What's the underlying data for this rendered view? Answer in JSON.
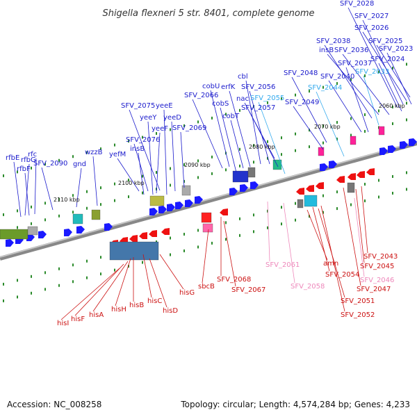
{
  "title": "Shigella flexneri 5 str. 8401, complete genome",
  "footer": {
    "accession": "Accession: NC_008258",
    "topology": "Topology: circular; Length: 4,574,284 bp; Genes: 4,233"
  },
  "colors": {
    "forward_strand": "#1a1aff",
    "reverse_strand": "#ee1111",
    "forward_light": "#66ccff",
    "reverse_light": "#ff99cc",
    "backbone": "#888888",
    "ticks": "#2a8a2a"
  },
  "kbp_ticks": [
    "2060 kbp",
    "2070 kbp",
    "2080 kbp",
    "2090 kbp",
    "2100 kbp",
    "2110 kbp"
  ],
  "top_labels": [
    {
      "text": "rfbG",
      "color": "#1a1acc"
    },
    {
      "text": "rfbE",
      "color": "#1a1acc"
    },
    {
      "text": "rfc",
      "color": "#1a1acc"
    },
    {
      "text": "rfbF",
      "color": "#1a1acc"
    },
    {
      "text": "SFV_2090",
      "color": "#1a1acc"
    },
    {
      "text": "gnd",
      "color": "#1a1acc"
    },
    {
      "text": "wzzB",
      "color": "#1a1acc"
    },
    {
      "text": "yefM",
      "color": "#1a1acc"
    },
    {
      "text": "insB",
      "color": "#1a1acc"
    },
    {
      "text": "SFV_2076",
      "color": "#1a1acc"
    },
    {
      "text": "yeeF",
      "color": "#1a1acc"
    },
    {
      "text": "yeeY",
      "color": "#1a1acc"
    },
    {
      "text": "SFV_2075",
      "color": "#1a1acc"
    },
    {
      "text": "yeeE",
      "color": "#1a1acc"
    },
    {
      "text": "yeeD",
      "color": "#1a1acc"
    },
    {
      "text": "SFV_2069",
      "color": "#1a1acc"
    },
    {
      "text": "SFV_2066",
      "color": "#1a1acc"
    },
    {
      "text": "cobU",
      "color": "#1a1acc"
    },
    {
      "text": "cobS",
      "color": "#1a1acc"
    },
    {
      "text": "cobT",
      "color": "#1a1acc"
    },
    {
      "text": "erfK",
      "color": "#1a1acc"
    },
    {
      "text": "cbl",
      "color": "#1a1acc"
    },
    {
      "text": "SFV_2056",
      "color": "#1a1acc"
    },
    {
      "text": "nac",
      "color": "#1a1acc"
    },
    {
      "text": "SFV_2055",
      "color": "#33aaee"
    },
    {
      "text": "SFV_2057",
      "color": "#1a1acc"
    },
    {
      "text": "SFV_2048",
      "color": "#1a1acc"
    },
    {
      "text": "SFV_2049",
      "color": "#1a1acc"
    },
    {
      "text": "SFV_2044",
      "color": "#33aaee"
    },
    {
      "text": "SFV_2040",
      "color": "#1a1acc"
    },
    {
      "text": "SFV_2037",
      "color": "#1a1acc"
    },
    {
      "text": "SFV_2033",
      "color": "#33aaee"
    },
    {
      "text": "SFV_2038",
      "color": "#1a1acc"
    },
    {
      "text": "insB",
      "color": "#1a1acc"
    },
    {
      "text": "SFV_2036",
      "color": "#1a1acc"
    },
    {
      "text": "SFV_2028",
      "color": "#1a1acc"
    },
    {
      "text": "SFV_2027",
      "color": "#1a1acc"
    },
    {
      "text": "SFV_2026",
      "color": "#1a1acc"
    },
    {
      "text": "SFV_2025",
      "color": "#1a1acc"
    },
    {
      "text": "SFV_2024",
      "color": "#1a1acc"
    },
    {
      "text": "SFV_2023",
      "color": "#1a1acc"
    }
  ],
  "bottom_labels": [
    {
      "text": "hisI",
      "color": "#cc1111"
    },
    {
      "text": "hisF",
      "color": "#cc1111"
    },
    {
      "text": "hisA",
      "color": "#cc1111"
    },
    {
      "text": "hisH",
      "color": "#cc1111"
    },
    {
      "text": "hisB",
      "color": "#cc1111"
    },
    {
      "text": "hisC",
      "color": "#cc1111"
    },
    {
      "text": "hisD",
      "color": "#cc1111"
    },
    {
      "text": "hisG",
      "color": "#cc1111"
    },
    {
      "text": "sbcB",
      "color": "#cc1111"
    },
    {
      "text": "SFV_2068",
      "color": "#cc1111"
    },
    {
      "text": "SFV_2067",
      "color": "#cc1111"
    },
    {
      "text": "SFV_2061",
      "color": "#ee88bb"
    },
    {
      "text": "SFV_2058",
      "color": "#ee88bb"
    },
    {
      "text": "amn",
      "color": "#cc1111"
    },
    {
      "text": "SFV_2054",
      "color": "#cc1111"
    },
    {
      "text": "SFV_2051",
      "color": "#cc1111"
    },
    {
      "text": "SFV_2052",
      "color": "#cc1111"
    },
    {
      "text": "SFV_2047",
      "color": "#cc1111"
    },
    {
      "text": "SFV_2046",
      "color": "#ee88bb"
    },
    {
      "text": "SFV_2045",
      "color": "#cc1111"
    },
    {
      "text": "SFV_2043",
      "color": "#cc1111"
    }
  ]
}
